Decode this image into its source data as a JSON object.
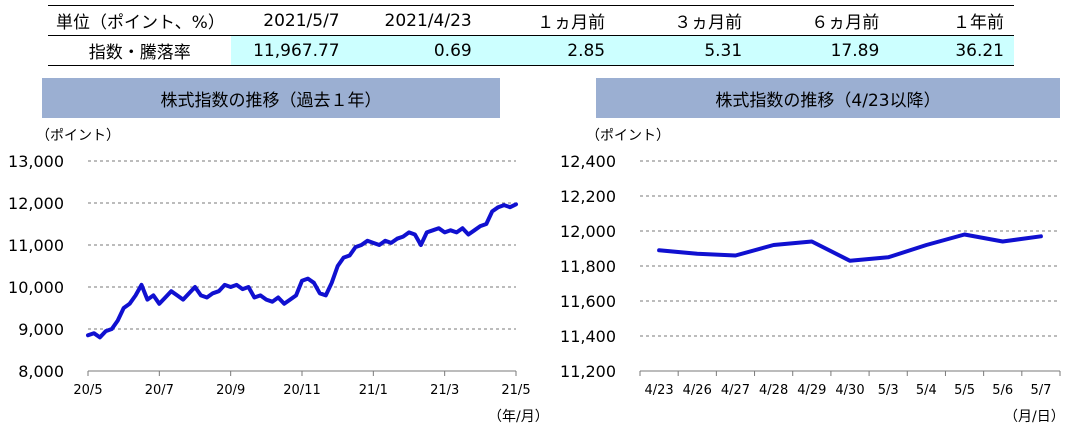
{
  "table": {
    "headers": [
      "単位（ポイント、%）",
      "2021/5/7",
      "2021/4/23",
      "１ヵ月前",
      "３ヵ月前",
      "６ヵ月前",
      "１年前"
    ],
    "row_label": "指数・騰落率",
    "values": [
      "11,967.77",
      "0.69",
      "2.85",
      "5.31",
      "17.89",
      "36.21"
    ]
  },
  "chart_data": [
    {
      "type": "line",
      "title": "株式指数の推移（過去１年）",
      "ylabel": "（ポイント）",
      "xlabel": "（年/月）",
      "ylim": [
        8000,
        13000
      ],
      "yticks": [
        "8,000",
        "9,000",
        "10,000",
        "11,000",
        "12,000",
        "13,000"
      ],
      "xticks": [
        "20/5",
        "20/7",
        "20/9",
        "20/11",
        "21/1",
        "21/3",
        "21/5"
      ],
      "color": "#1010d0",
      "series": [
        {
          "values": [
            8850,
            8900,
            8800,
            8950,
            9000,
            9200,
            9500,
            9600,
            9800,
            10050,
            9700,
            9800,
            9600,
            9750,
            9900,
            9800,
            9700,
            9850,
            10000,
            9800,
            9750,
            9850,
            9900,
            10050,
            10000,
            10050,
            9950,
            10000,
            9750,
            9800,
            9700,
            9650,
            9750,
            9600,
            9700,
            9800,
            10150,
            10200,
            10100,
            9850,
            9800,
            10100,
            10500,
            10700,
            10750,
            10950,
            11000,
            11100,
            11050,
            11000,
            11100,
            11050,
            11150,
            11200,
            11300,
            11250,
            11000,
            11300,
            11350,
            11400,
            11300,
            11350,
            11300,
            11400,
            11250,
            11350,
            11450,
            11500,
            11800,
            11900,
            11950,
            11900,
            11970
          ]
        }
      ]
    },
    {
      "type": "line",
      "title": "株式指数の推移（4/23以降）",
      "ylabel": "（ポイント）",
      "xlabel": "（月/日）",
      "ylim": [
        11200,
        12400
      ],
      "yticks": [
        "11,200",
        "11,400",
        "11,600",
        "11,800",
        "12,000",
        "12,200",
        "12,400"
      ],
      "categories": [
        "4/23",
        "4/26",
        "4/27",
        "4/28",
        "4/29",
        "4/30",
        "5/3",
        "5/4",
        "5/5",
        "5/6",
        "5/7"
      ],
      "color": "#1010d0",
      "series": [
        {
          "values": [
            11890,
            11870,
            11860,
            11920,
            11940,
            11830,
            11850,
            11920,
            11980,
            11940,
            11970
          ]
        }
      ]
    }
  ]
}
